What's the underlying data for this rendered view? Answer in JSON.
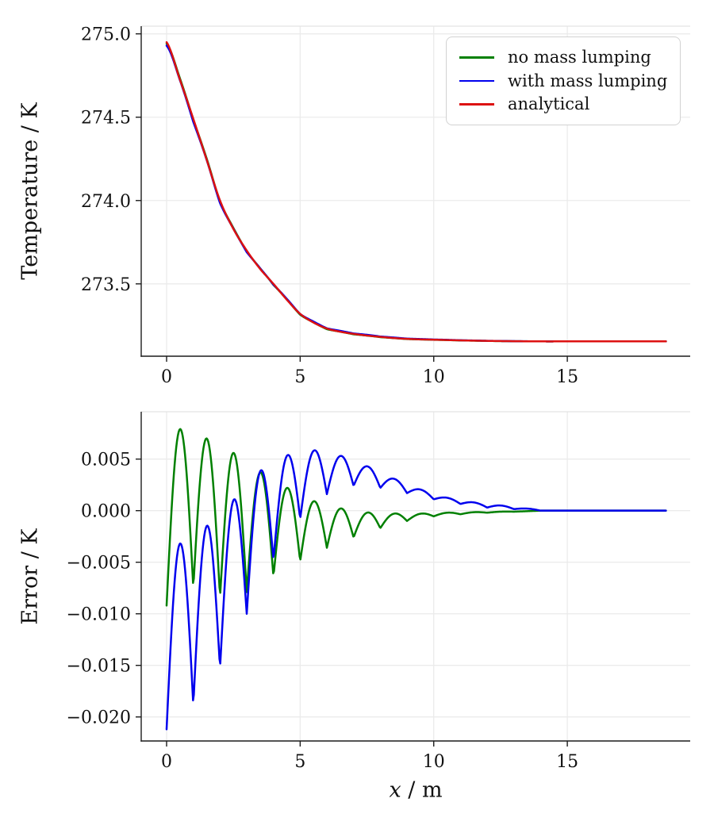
{
  "colors": {
    "no_mass_lumping": "#008000",
    "with_mass_lumping": "#0000ee",
    "analytical": "#dd1111",
    "grid": "#ebebeb",
    "spine": "#1c1c1c",
    "top_spine": "#e4e4e4",
    "text": "#111111",
    "legend_border": "#d2d2d2",
    "background": "#ffffff"
  },
  "legend": {
    "position": "upper right",
    "items": [
      "no mass lumping",
      "with mass lumping",
      "analytical"
    ]
  },
  "chart_data": [
    {
      "type": "line",
      "title": "",
      "xlabel": "",
      "ylabel": "Temperature / K",
      "xlim": [
        -0.95,
        19.6
      ],
      "ylim": [
        273.066,
        275.046
      ],
      "x_max_data": 18.7,
      "grid": true,
      "xticks": [
        0,
        5,
        10,
        15
      ],
      "xtick_labels": [
        "0",
        "5",
        "10",
        "15"
      ],
      "yticks": [
        273.5,
        274.0,
        274.5,
        275.0
      ],
      "ytick_labels": [
        "273.5",
        "274.0",
        "274.5",
        "275.0"
      ],
      "x": [
        0,
        0.5,
        1,
        1.5,
        2,
        2.5,
        3,
        3.5,
        4,
        4.5,
        5,
        5.5,
        6,
        6.5,
        7,
        7.5,
        8,
        8.5,
        9,
        9.5,
        10,
        11,
        12,
        13,
        14,
        15,
        16,
        17,
        18,
        18.7
      ],
      "series": [
        {
          "name": "no mass lumping",
          "color": "#008000",
          "values": [
            274.941,
            274.733,
            274.483,
            274.252,
            273.992,
            273.836,
            273.692,
            273.594,
            273.494,
            273.407,
            273.315,
            273.269,
            273.228,
            273.213,
            273.197,
            273.19,
            273.18,
            273.175,
            273.169,
            273.167,
            273.164,
            273.161,
            273.158,
            273.156,
            273.155,
            273.155,
            273.155,
            273.155,
            273.155,
            273.155
          ]
        },
        {
          "name": "with mass lumping",
          "color": "#0000ee",
          "values": [
            274.929,
            274.722,
            274.471,
            274.244,
            273.985,
            273.831,
            273.69,
            273.594,
            273.495,
            273.41,
            273.319,
            273.274,
            273.234,
            273.218,
            273.202,
            273.194,
            273.184,
            273.178,
            273.172,
            273.169,
            273.166,
            273.162,
            273.158,
            273.156,
            273.155,
            273.155,
            273.155,
            273.155,
            273.155,
            273.155
          ]
        },
        {
          "name": "analytical",
          "color": "#dd1111",
          "values": [
            274.95,
            274.725,
            274.49,
            274.245,
            274.0,
            273.83,
            273.7,
            273.59,
            273.5,
            273.405,
            273.32,
            273.268,
            273.232,
            273.213,
            273.2,
            273.19,
            273.182,
            273.175,
            273.17,
            273.167,
            273.165,
            273.161,
            273.158,
            273.156,
            273.155,
            273.155,
            273.155,
            273.155,
            273.155,
            273.155
          ]
        }
      ]
    },
    {
      "type": "line",
      "title": "",
      "xlabel": "x / m",
      "xlabel_var": "x",
      "xlabel_rest": " / m",
      "ylabel": "Error / K",
      "xlim": [
        -0.95,
        19.6
      ],
      "ylim": [
        -0.02233,
        0.00959
      ],
      "x_max_data": 18.7,
      "grid": true,
      "oscillation_period_m": 1.0,
      "xticks": [
        0,
        5,
        10,
        15
      ],
      "xtick_labels": [
        "0",
        "5",
        "10",
        "15"
      ],
      "yticks": [
        0.005,
        0.0,
        -0.005,
        -0.01,
        -0.015,
        -0.02
      ],
      "ytick_labels": [
        "0.005",
        "0.000",
        "−0.005",
        "−0.010",
        "−0.015",
        "−0.020"
      ],
      "series": [
        {
          "name": "no mass lumping",
          "color": "#008000",
          "cusps_x": [
            0,
            1,
            2,
            3,
            4,
            5,
            6,
            7,
            8,
            9,
            10,
            11,
            12,
            13,
            14
          ],
          "cusps_y": [
            -0.0092,
            -0.0075,
            -0.0084,
            -0.0079,
            -0.0064,
            -0.0049,
            -0.0036,
            -0.0026,
            -0.0017,
            -0.001,
            -0.00055,
            -0.00035,
            -0.0002,
            -0.0001,
            0
          ],
          "peaks_x": [
            0.5,
            1.5,
            2.5,
            3.5,
            4.5,
            5.5,
            6.5,
            7.5,
            8.5,
            9.5,
            10.5,
            11.5,
            12.5,
            13.5
          ],
          "peaks_y": [
            0.0079,
            0.007,
            0.0056,
            0.0037,
            0.0022,
            0.0009,
            0.0002,
            -0.0002,
            -0.0003,
            -0.0003,
            -0.0002,
            -0.00015,
            -0.0001,
            -5e-05
          ]
        },
        {
          "name": "with mass lumping",
          "color": "#0000ee",
          "cusps_x": [
            0,
            1,
            2,
            3,
            4,
            5,
            6,
            7,
            8,
            9,
            10,
            11,
            12,
            13,
            14
          ],
          "cusps_y": [
            -0.0212,
            -0.0189,
            -0.0153,
            -0.01,
            -0.0048,
            -0.0008,
            0.0016,
            0.0024,
            0.0022,
            0.0017,
            0.0011,
            0.00065,
            0.0003,
            0.00015,
            0
          ],
          "peaks_x": [
            0.5,
            1.5,
            2.5,
            3.5,
            4.5,
            5.5,
            6.5,
            7.5,
            8.5,
            9.5,
            10.5,
            11.5,
            12.5,
            13.5
          ],
          "peaks_y": [
            -0.0032,
            -0.0015,
            0.001,
            0.0038,
            0.0053,
            0.0058,
            0.0053,
            0.0043,
            0.0031,
            0.00205,
            0.00125,
            0.0008,
            0.0005,
            0.0002
          ]
        }
      ]
    }
  ]
}
